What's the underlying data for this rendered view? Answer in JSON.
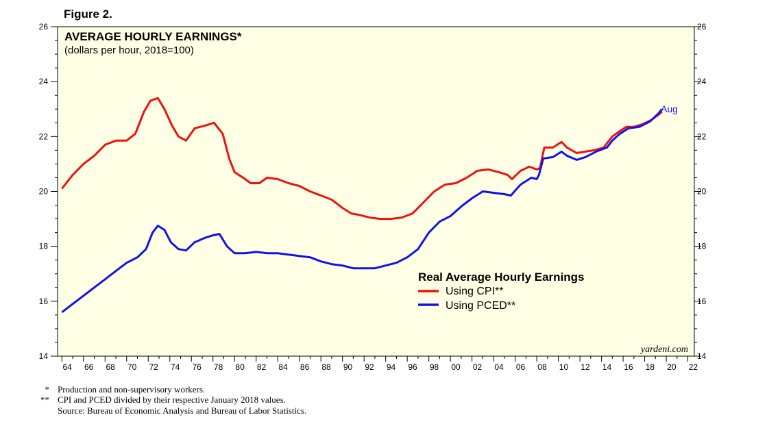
{
  "figure_label": "Figure 2.",
  "chart_data": {
    "type": "line",
    "title": "AVERAGE HOURLY EARNINGS*",
    "subtitle": "(dollars per hour, 2018=100)",
    "xlim": [
      1963.6,
      2022.6
    ],
    "ylim": [
      14,
      26
    ],
    "y_ticks": [
      14,
      16,
      18,
      20,
      22,
      24,
      26
    ],
    "x_tick_years": [
      1964,
      1966,
      1968,
      1970,
      1972,
      1974,
      1976,
      1978,
      1980,
      1982,
      1984,
      1986,
      1988,
      1990,
      1992,
      1994,
      1996,
      1998,
      2000,
      2002,
      2004,
      2006,
      2008,
      2010,
      2012,
      2014,
      2016,
      2018,
      2020,
      2022
    ],
    "x_tick_labels": [
      "64",
      "66",
      "68",
      "70",
      "72",
      "74",
      "76",
      "78",
      "80",
      "82",
      "84",
      "86",
      "88",
      "90",
      "92",
      "94",
      "96",
      "98",
      "00",
      "02",
      "04",
      "06",
      "08",
      "10",
      "12",
      "14",
      "16",
      "18",
      "20",
      "22"
    ],
    "legend_title": "Real Average Hourly Earnings",
    "series": [
      {
        "name": "Using CPI**",
        "color": "#ee1111",
        "x": [
          1964,
          1965,
          1966,
          1967,
          1968,
          1969,
          1970,
          1970.8,
          1971.6,
          1972.2,
          1972.9,
          1973.5,
          1974.2,
          1974.8,
          1975.5,
          1976.3,
          1977.3,
          1978.1,
          1978.9,
          1979.5,
          1980,
          1980.8,
          1981.5,
          1982.3,
          1983,
          1984,
          1985,
          1986,
          1987,
          1988,
          1989,
          1990,
          1990.8,
          1991.5,
          1992.5,
          1993.5,
          1994.5,
          1995.5,
          1996.5,
          1997.5,
          1998.5,
          1999.5,
          2000.5,
          2001.5,
          2002.5,
          2003.5,
          2004.5,
          2005.3,
          2005.7,
          2006.5,
          2007.3,
          2008,
          2008.3,
          2008.7,
          2009.5,
          2010.3,
          2010.8,
          2011.7,
          2012.5,
          2013.3,
          2014.2,
          2015,
          2015.7,
          2016.3,
          2017,
          2017.8,
          2018.6,
          2019.3,
          2019.6
        ],
        "values": [
          20.1,
          20.6,
          21.0,
          21.3,
          21.7,
          21.85,
          21.85,
          22.1,
          22.9,
          23.3,
          23.4,
          23.0,
          22.4,
          22.0,
          21.85,
          22.3,
          22.4,
          22.5,
          22.1,
          21.2,
          20.7,
          20.5,
          20.3,
          20.3,
          20.5,
          20.45,
          20.3,
          20.2,
          20.0,
          19.85,
          19.7,
          19.4,
          19.2,
          19.15,
          19.05,
          19.0,
          19.0,
          19.05,
          19.2,
          19.6,
          20.0,
          20.25,
          20.3,
          20.5,
          20.75,
          20.8,
          20.7,
          20.6,
          20.45,
          20.75,
          20.9,
          20.8,
          20.85,
          21.6,
          21.6,
          21.8,
          21.6,
          21.4,
          21.45,
          21.5,
          21.6,
          22.0,
          22.2,
          22.35,
          22.35,
          22.45,
          22.6,
          22.8,
          22.9
        ]
      },
      {
        "name": "Using PCED**",
        "color": "#1111ee",
        "x": [
          1964,
          1965,
          1966,
          1967,
          1968,
          1969,
          1970,
          1971,
          1971.8,
          1972.4,
          1972.9,
          1973.5,
          1974.1,
          1974.8,
          1975.5,
          1976.3,
          1977.2,
          1978,
          1978.6,
          1979.3,
          1980,
          1981,
          1982,
          1983,
          1984,
          1985,
          1986,
          1987,
          1988,
          1989,
          1990,
          1991,
          1992,
          1993,
          1994,
          1995,
          1996,
          1997,
          1998,
          1999,
          2000,
          2001,
          2002,
          2003,
          2004,
          2005,
          2005.6,
          2006.5,
          2007.5,
          2008,
          2008.2,
          2008.6,
          2009.5,
          2010.3,
          2010.8,
          2011.7,
          2012.5,
          2013.5,
          2014.5,
          2015,
          2015.7,
          2016.5,
          2017.5,
          2018.5,
          2019.3,
          2019.6
        ],
        "values": [
          15.6,
          15.9,
          16.2,
          16.5,
          16.8,
          17.1,
          17.4,
          17.6,
          17.9,
          18.5,
          18.75,
          18.6,
          18.15,
          17.9,
          17.85,
          18.15,
          18.3,
          18.4,
          18.45,
          18.0,
          17.75,
          17.75,
          17.8,
          17.75,
          17.75,
          17.7,
          17.65,
          17.6,
          17.45,
          17.35,
          17.3,
          17.2,
          17.2,
          17.2,
          17.3,
          17.4,
          17.6,
          17.9,
          18.5,
          18.9,
          19.1,
          19.45,
          19.75,
          20.0,
          19.95,
          19.9,
          19.85,
          20.25,
          20.5,
          20.45,
          20.6,
          21.2,
          21.25,
          21.45,
          21.3,
          21.15,
          21.25,
          21.45,
          21.6,
          21.85,
          22.1,
          22.3,
          22.35,
          22.55,
          22.85,
          23.0
        ]
      }
    ],
    "end_label": "Aug"
  },
  "brand": "yardeni.com",
  "footnotes": [
    {
      "mark": "*",
      "text": "Production and non-supervisory workers."
    },
    {
      "mark": "**",
      "text": "CPI and PCED divided by their respective January 2018 values."
    },
    {
      "mark": "",
      "text": "Source: Bureau of Economic Analysis and Bureau of Labor Statistics."
    }
  ]
}
